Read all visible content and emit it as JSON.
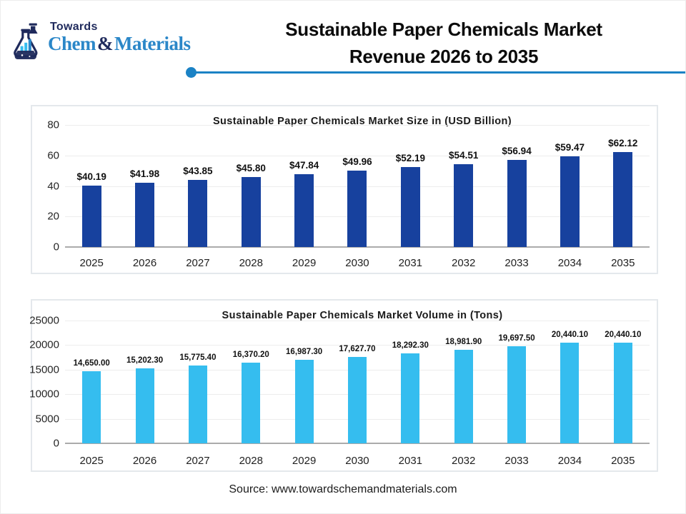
{
  "header": {
    "logo": {
      "towards": "Towards",
      "chem": "Chem",
      "amp": "&",
      "materials": "Materials"
    },
    "title_line1": "Sustainable Paper Chemicals Market",
    "title_line2": "Revenue 2026 to 2035"
  },
  "footer": {
    "source": "Source: www.towardschemandmaterials.com"
  },
  "colors": {
    "brand_navy": "#1f2a5c",
    "brand_blue": "#2b87c8",
    "divider_blue": "#1b82c5",
    "bar_dark_blue": "#17419e",
    "bar_light_blue": "#35bdef"
  },
  "chart_data": [
    {
      "type": "bar",
      "title": "Sustainable Paper Chemicals Market Size in (USD Billion)",
      "categories": [
        "2025",
        "2026",
        "2027",
        "2028",
        "2029",
        "2030",
        "2031",
        "2032",
        "2033",
        "2034",
        "2035"
      ],
      "values": [
        40.19,
        41.98,
        43.85,
        45.8,
        47.84,
        49.96,
        52.19,
        54.51,
        56.94,
        59.47,
        62.12
      ],
      "labels": [
        "$40.19",
        "$41.98",
        "$43.85",
        "$45.80",
        "$47.84",
        "$49.96",
        "$52.19",
        "$54.51",
        "$56.94",
        "$59.47",
        "$62.12"
      ],
      "ylim": [
        0,
        80
      ],
      "yticks": [
        0,
        20,
        40,
        60,
        80
      ],
      "ytick_labels": [
        "0",
        "20",
        "40",
        "60",
        "80"
      ],
      "bar_color": "#17419e",
      "grid": true,
      "legend": "none"
    },
    {
      "type": "bar",
      "title": "Sustainable Paper Chemicals Market Volume in (Tons)",
      "categories": [
        "2025",
        "2026",
        "2027",
        "2028",
        "2029",
        "2030",
        "2031",
        "2032",
        "2033",
        "2034",
        "2035"
      ],
      "values": [
        14650.0,
        15202.3,
        15775.4,
        16370.2,
        16987.3,
        17627.7,
        18292.3,
        18981.9,
        19697.5,
        20440.1,
        20440.1
      ],
      "labels": [
        "14,650.00",
        "15,202.30",
        "15,775.40",
        "16,370.20",
        "16,987.30",
        "17,627.70",
        "18,292.30",
        "18,981.90",
        "19,697.50",
        "20,440.10",
        "20,440.10"
      ],
      "ylim": [
        0,
        25000
      ],
      "yticks": [
        0,
        5000,
        10000,
        15000,
        20000,
        25000
      ],
      "ytick_labels": [
        "0",
        "5000",
        "10000",
        "15000",
        "20000",
        "25000"
      ],
      "bar_color": "#35bdef",
      "grid": true,
      "legend": "none"
    }
  ]
}
